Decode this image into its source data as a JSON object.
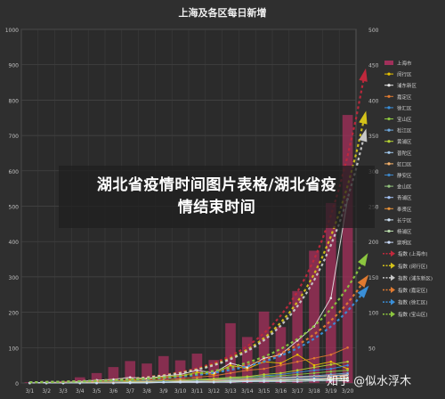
{
  "overlay": {
    "line1": "湖北省疫情时间图片表格/湖北省疫",
    "line2": "情结束时间"
  },
  "watermark": "知乎 @似水浮木",
  "chart_data": {
    "type": "bar",
    "title": "上海及各区每日新增",
    "left_axis": {
      "ticks": [
        0,
        100,
        200,
        300,
        400,
        500,
        600,
        700,
        800,
        900,
        1000
      ],
      "ylim": [
        0,
        1000
      ]
    },
    "right_axis": {
      "ticks": [
        0,
        50,
        100,
        150,
        200,
        250,
        300,
        350,
        400,
        450,
        500
      ],
      "ylim": [
        0,
        500
      ]
    },
    "categories": [
      "3/1",
      "3/2",
      "3/3",
      "3/4",
      "3/5",
      "3/6",
      "3/7",
      "3/8",
      "3/9",
      "3/10",
      "3/11",
      "3/12",
      "3/13",
      "3/14",
      "3/15",
      "3/16",
      "3/17",
      "3/18",
      "3/19",
      "3/20"
    ],
    "bar_series": {
      "name": "上海市",
      "color": "#a0305a",
      "values": [
        2,
        3,
        5,
        16,
        28,
        45,
        62,
        55,
        76,
        64,
        83,
        65,
        169,
        130,
        202,
        158,
        260,
        374,
        509,
        758
      ]
    },
    "line_series": [
      {
        "name": "闵行区",
        "color": "#e8c200",
        "values": [
          0,
          0,
          0,
          1,
          2,
          3,
          4,
          6,
          8,
          10,
          15,
          12,
          25,
          20,
          30,
          28,
          40,
          25,
          30,
          20
        ]
      },
      {
        "name": "浦东新区",
        "color": "#e8e8e8",
        "values": [
          0,
          1,
          1,
          2,
          4,
          5,
          8,
          6,
          10,
          12,
          18,
          14,
          28,
          22,
          35,
          40,
          60,
          80,
          120,
          260
        ]
      },
      {
        "name": "嘉定区",
        "color": "#e07a30",
        "values": [
          0,
          0,
          1,
          1,
          2,
          2,
          3,
          4,
          5,
          6,
          8,
          10,
          14,
          18,
          20,
          25,
          30,
          35,
          40,
          50
        ]
      },
      {
        "name": "徐汇区",
        "color": "#3a8fd8",
        "values": [
          0,
          0,
          0,
          1,
          1,
          2,
          2,
          3,
          3,
          4,
          5,
          6,
          7,
          8,
          10,
          12,
          15,
          18,
          20,
          25
        ]
      },
      {
        "name": "宝山区",
        "color": "#8cc63f",
        "values": [
          0,
          0,
          0,
          0,
          1,
          1,
          2,
          2,
          3,
          3,
          4,
          5,
          6,
          8,
          9,
          10,
          12,
          14,
          16,
          18
        ]
      },
      {
        "name": "松江区",
        "color": "#6fa8dc",
        "values": [
          0,
          0,
          0,
          0,
          1,
          1,
          1,
          2,
          2,
          3,
          3,
          4,
          5,
          6,
          7,
          8,
          9,
          10,
          12,
          14
        ]
      },
      {
        "name": "黄浦区",
        "color": "#b5d334",
        "values": [
          0,
          0,
          0,
          1,
          1,
          1,
          2,
          2,
          3,
          4,
          5,
          6,
          8,
          9,
          12,
          14,
          18,
          22,
          26,
          30
        ]
      },
      {
        "name": "普陀区",
        "color": "#9fc5e8",
        "values": [
          0,
          0,
          0,
          0,
          0,
          1,
          1,
          1,
          2,
          2,
          3,
          3,
          4,
          5,
          6,
          7,
          8,
          9,
          10,
          12
        ]
      },
      {
        "name": "虹口区",
        "color": "#f6b26b",
        "values": [
          0,
          0,
          0,
          0,
          1,
          1,
          1,
          2,
          2,
          3,
          3,
          4,
          5,
          5,
          6,
          7,
          8,
          9,
          10,
          11
        ]
      },
      {
        "name": "静安区",
        "color": "#3d85c6",
        "values": [
          0,
          0,
          0,
          0,
          0,
          1,
          1,
          1,
          2,
          2,
          3,
          3,
          4,
          4,
          5,
          6,
          7,
          8,
          9,
          10
        ]
      },
      {
        "name": "金山区",
        "color": "#93c47d",
        "values": [
          0,
          0,
          0,
          0,
          0,
          0,
          1,
          1,
          1,
          1,
          2,
          2,
          2,
          3,
          3,
          4,
          4,
          5,
          5,
          6
        ]
      },
      {
        "name": "青浦区",
        "color": "#a4c2f4",
        "values": [
          0,
          0,
          0,
          0,
          0,
          0,
          1,
          1,
          1,
          2,
          2,
          2,
          3,
          3,
          4,
          4,
          5,
          5,
          6,
          7
        ]
      },
      {
        "name": "奉贤区",
        "color": "#e69138",
        "values": [
          0,
          0,
          0,
          0,
          0,
          1,
          1,
          1,
          1,
          2,
          2,
          3,
          3,
          4,
          4,
          5,
          5,
          6,
          7,
          8
        ]
      },
      {
        "name": "长宁区",
        "color": "#cfe2f3",
        "values": [
          0,
          0,
          0,
          0,
          0,
          0,
          1,
          1,
          1,
          2,
          2,
          2,
          3,
          3,
          4,
          4,
          5,
          6,
          6,
          7
        ]
      },
      {
        "name": "杨浦区",
        "color": "#b6d7a8",
        "values": [
          0,
          0,
          0,
          0,
          0,
          0,
          0,
          1,
          1,
          1,
          1,
          2,
          2,
          2,
          3,
          3,
          4,
          4,
          5,
          5
        ]
      },
      {
        "name": "崇明区",
        "color": "#c9daf8",
        "values": [
          0,
          0,
          0,
          0,
          0,
          0,
          0,
          0,
          1,
          1,
          1,
          1,
          1,
          2,
          2,
          2,
          2,
          3,
          3,
          3
        ]
      }
    ],
    "trend_series": [
      {
        "name": "指数 (上海市)",
        "color": "#c0283c"
      },
      {
        "name": "指数 (闵行区)",
        "color": "#d4c21a"
      },
      {
        "name": "指数 (浦东新区)",
        "color": "#c8c8c8"
      },
      {
        "name": "指数 (嘉定区)",
        "color": "#e07a30"
      },
      {
        "name": "指数 (徐汇区)",
        "color": "#3a8fd8"
      },
      {
        "name": "指数 (宝山区)",
        "color": "#8cc63f"
      }
    ],
    "legend_position": "right",
    "grid": true
  }
}
